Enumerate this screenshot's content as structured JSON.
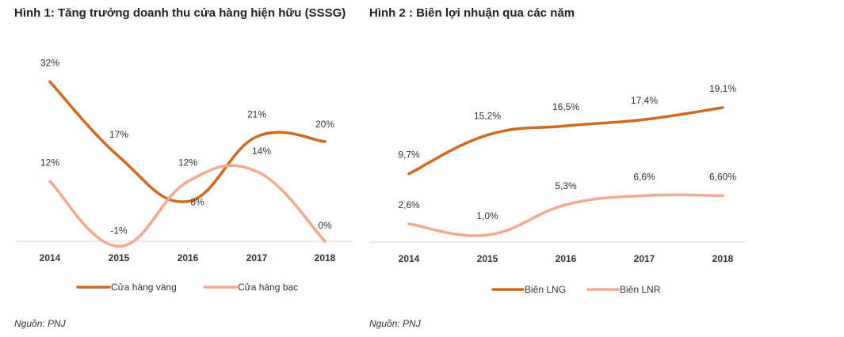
{
  "chart_data": [
    {
      "type": "line",
      "title": "Hình 1: Tăng trưởng doanh thu cửa hàng hiện hữu (SSSG)",
      "categories": [
        "2014",
        "2015",
        "2016",
        "2017",
        "2018"
      ],
      "series": [
        {
          "name": "Cửa hàng vàng",
          "values": [
            32,
            17,
            8,
            21,
            20
          ],
          "labels": [
            "32%",
            "17%",
            "8%",
            "21%",
            "20%"
          ],
          "color": "#d2691e"
        },
        {
          "name": "Cửa hàng bạc",
          "values": [
            12,
            -1,
            12,
            14,
            0
          ],
          "labels": [
            "12%",
            "-1%",
            "12%",
            "14%",
            "0%"
          ],
          "color": "#f4a88f"
        }
      ],
      "legend": "bottom",
      "source": "Nguồn: PNJ"
    },
    {
      "type": "line",
      "title": "Hình 2 : Biên lợi nhuận qua các năm",
      "categories": [
        "2014",
        "2015",
        "2016",
        "2017",
        "2018"
      ],
      "series": [
        {
          "name": "Biên LNG",
          "values": [
            9.7,
            15.2,
            16.5,
            17.4,
            19.1
          ],
          "labels": [
            "9,7%",
            "15,2%",
            "16,5%",
            "17,4%",
            "19,1%"
          ],
          "color": "#d2691e"
        },
        {
          "name": "Biên LNR",
          "values": [
            2.6,
            1.0,
            5.3,
            6.6,
            6.6
          ],
          "labels": [
            "2,6%",
            "1,0%",
            "5,3%",
            "6,6%",
            "6,60%"
          ],
          "color": "#f4a88f"
        }
      ],
      "legend": "bottom",
      "source": "Nguồn: PNJ"
    }
  ]
}
